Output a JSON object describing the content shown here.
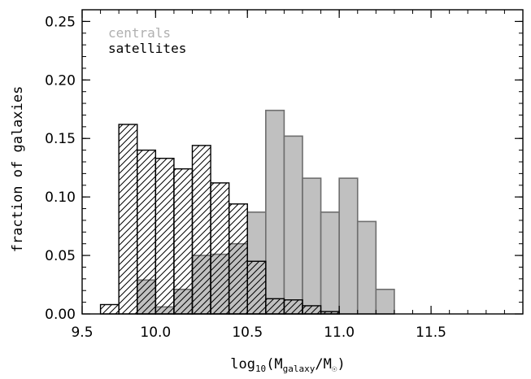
{
  "chart_data": {
    "type": "bar",
    "ylabel": "fraction of galaxies",
    "xlabel_parts": {
      "lead": "log",
      "lead_sub": "10",
      "open": "(M",
      "sub": "galaxy",
      "mid": "/M",
      "sun": "☉",
      "close": ")"
    },
    "xlim": [
      9.6,
      11.9
    ],
    "ylim": [
      0.0,
      0.26
    ],
    "xticks": [
      {
        "value": 9.5,
        "label": "9.5"
      },
      {
        "value": 10.0,
        "label": "10.0"
      },
      {
        "value": 10.5,
        "label": "10.5"
      },
      {
        "value": 11.0,
        "label": "11.0"
      },
      {
        "value": 11.5,
        "label": "11.5"
      }
    ],
    "yticks": [
      {
        "value": 0.0,
        "label": "0.00"
      },
      {
        "value": 0.05,
        "label": "0.05"
      },
      {
        "value": 0.1,
        "label": "0.10"
      },
      {
        "value": 0.15,
        "label": "0.15"
      },
      {
        "value": 0.2,
        "label": "0.20"
      },
      {
        "value": 0.25,
        "label": "0.25"
      }
    ],
    "legend": {
      "placement": "top-left",
      "entries": [
        {
          "label": "centrals",
          "color": "#b0b0b0"
        },
        {
          "label": "satellites",
          "color": "#000000"
        }
      ]
    },
    "bin_width": 0.1,
    "series": [
      {
        "name": "centrals",
        "fill": "#c0c0c0",
        "edge": "#6e6e6e",
        "bins": [
          {
            "x": 9.6,
            "y": 0.0
          },
          {
            "x": 9.7,
            "y": 0.0
          },
          {
            "x": 9.8,
            "y": 0.029
          },
          {
            "x": 9.9,
            "y": 0.006
          },
          {
            "x": 10.0,
            "y": 0.021
          },
          {
            "x": 10.1,
            "y": 0.05
          },
          {
            "x": 10.2,
            "y": 0.051
          },
          {
            "x": 10.3,
            "y": 0.06
          },
          {
            "x": 10.4,
            "y": 0.087
          },
          {
            "x": 10.5,
            "y": 0.174
          },
          {
            "x": 10.6,
            "y": 0.152
          },
          {
            "x": 10.7,
            "y": 0.116
          },
          {
            "x": 10.8,
            "y": 0.087
          },
          {
            "x": 10.9,
            "y": 0.116
          },
          {
            "x": 11.0,
            "y": 0.079
          },
          {
            "x": 11.1,
            "y": 0.021
          }
        ]
      },
      {
        "name": "satellites",
        "fill": "hatch",
        "edge": "#000000",
        "bins": [
          {
            "x": 9.6,
            "y": 0.008
          },
          {
            "x": 9.7,
            "y": 0.162
          },
          {
            "x": 9.8,
            "y": 0.14
          },
          {
            "x": 9.9,
            "y": 0.133
          },
          {
            "x": 10.0,
            "y": 0.124
          },
          {
            "x": 10.1,
            "y": 0.144
          },
          {
            "x": 10.2,
            "y": 0.112
          },
          {
            "x": 10.3,
            "y": 0.094
          },
          {
            "x": 10.4,
            "y": 0.045
          },
          {
            "x": 10.5,
            "y": 0.013
          },
          {
            "x": 10.6,
            "y": 0.012
          },
          {
            "x": 10.7,
            "y": 0.007
          },
          {
            "x": 10.8,
            "y": 0.002
          }
        ]
      }
    ]
  }
}
